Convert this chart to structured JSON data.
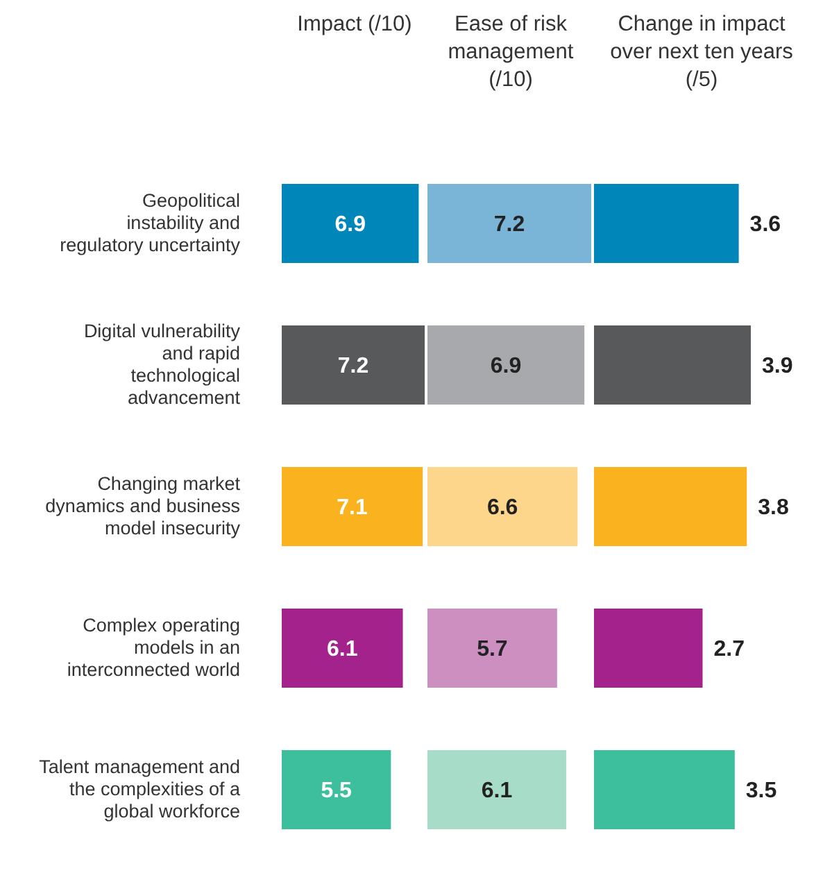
{
  "chart_data": [
    {
      "type": "bar",
      "orientation": "horizontal",
      "title": "Impact (/10)",
      "categories": [
        "Geopolitical instability and regulatory uncertainty",
        "Digital vulnerability and rapid technological advancement",
        "Changing market dynamics and business model insecurity",
        "Complex operating models in an interconnected world",
        "Talent management and the complexities of a global workforce"
      ],
      "values": [
        6.9,
        7.2,
        7.1,
        6.1,
        5.5
      ],
      "colors": [
        "#0086b8",
        "#58595b",
        "#fbb21f",
        "#a3228b",
        "#3dbf9d"
      ],
      "xlim": [
        0,
        7.2
      ],
      "data_labels": true,
      "tick_labels": "y"
    },
    {
      "type": "bar",
      "orientation": "horizontal",
      "title": "Ease of risk management (/10)",
      "categories": [
        null,
        null,
        null,
        null,
        null
      ],
      "values": [
        7.2,
        6.9,
        6.6,
        5.7,
        6.1
      ],
      "colors": [
        "#7ab5d8",
        "#a7a9ac",
        "#fdd68b",
        "#cc8fc0",
        "#a7dcc9"
      ],
      "xlim": [
        0,
        7.2
      ],
      "data_labels": true,
      "tick_labels": false
    },
    {
      "type": "bar",
      "orientation": "horizontal",
      "title": "Change in impact over next ten years (/5)",
      "categories": [
        null,
        null,
        null,
        null,
        null
      ],
      "values": [
        3.6,
        3.9,
        3.8,
        2.7,
        3.5
      ],
      "colors": [
        "#0086b8",
        "#58595b",
        "#fbb21f",
        "#a3228b",
        "#3dbf9d"
      ],
      "xlim": [
        0,
        3.9
      ],
      "data_labels": true,
      "tick_labels": false
    }
  ]
}
